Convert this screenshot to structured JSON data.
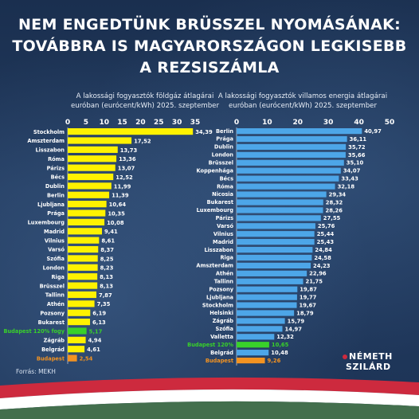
{
  "title_lines": [
    "NEM ENGEDTÜNK BRÜSSZEL NYOMÁSÁNAK:",
    "TOVÁBBRA IS MAGYARORSZÁGON LEGKISEBB",
    "A REZSISZÁMLA"
  ],
  "source": "Forrás: MEKH",
  "logo": {
    "line1": "NÉMETH",
    "line2": "SZILÁRD"
  },
  "colors": {
    "gas_bar": "#fff200",
    "electricity_bar": "#4da6e8",
    "highlight_budapest_120": "#39d12a",
    "highlight_budapest": "#f39321",
    "label_budapest_120": "#39d12a",
    "label_budapest": "#f39321",
    "flag_red": "#cd2a3e",
    "flag_white": "#ffffff",
    "flag_green": "#436f4d"
  },
  "chart_data": [
    {
      "type": "bar",
      "orientation": "horizontal",
      "title_lines": [
        "A lakossági fogyasztók földgáz átlagárai",
        "euróban (eurócent/kWh) 2025. szeptember"
      ],
      "xlim": [
        0,
        35
      ],
      "xticks": [
        "0",
        "5",
        "10",
        "15",
        "20",
        "25",
        "30",
        "35"
      ],
      "bar_color": "#fff200",
      "categories": [
        "Stockholm",
        "Amszterdam",
        "Lisszabon",
        "Róma",
        "Párizs",
        "Bécs",
        "Dublin",
        "Berlin",
        "Ljubljana",
        "Prága",
        "Luxembourg",
        "Madrid",
        "Vilnius",
        "Varsó",
        "Szófia",
        "London",
        "Riga",
        "Brüsszel",
        "Tallinn",
        "Athén",
        "Pozsony",
        "Bukarest",
        "Budapest 120% fogy",
        "Zágráb",
        "Belgrád",
        "Budapest"
      ],
      "values": [
        34.39,
        17.52,
        13.73,
        13.36,
        13.07,
        12.52,
        11.99,
        11.39,
        10.64,
        10.35,
        10.08,
        9.41,
        8.61,
        8.37,
        8.25,
        8.23,
        8.13,
        8.13,
        7.87,
        7.35,
        6.19,
        6.13,
        5.17,
        4.94,
        4.61,
        2.54
      ],
      "value_labels": [
        "34,39",
        "17,52",
        "13,73",
        "13,36",
        "13,07",
        "12,52",
        "11,99",
        "11,39",
        "10,64",
        "10,35",
        "10,08",
        "9,41",
        "8,61",
        "8,37",
        "8,25",
        "8,23",
        "8,13",
        "8,13",
        "7,87",
        "7,35",
        "6,19",
        "6,13",
        "5,17",
        "4,94",
        "4,61",
        "2,54"
      ],
      "highlights": {
        "Budapest 120% fogy": "green",
        "Budapest": "orange"
      }
    },
    {
      "type": "bar",
      "orientation": "horizontal",
      "title_lines": [
        "A lakossági fogyasztók villamos energia átlagárai",
        "euróban (eurócent/kWh) 2025. szeptember"
      ],
      "xlim": [
        0,
        50
      ],
      "xticks": [
        "0",
        "10",
        "20",
        "30",
        "40",
        "50"
      ],
      "bar_color": "#4da6e8",
      "categories": [
        "Berlin",
        "Prága",
        "Dublin",
        "London",
        "Brüsszel",
        "Koppenhága",
        "Bécs",
        "Róma",
        "Nicosia",
        "Bukarest",
        "Luxembourg",
        "Párizs",
        "Varsó",
        "Vilnius",
        "Madrid",
        "Lisszabon",
        "Riga",
        "Amszterdam",
        "Athén",
        "Tallinn",
        "Pozsony",
        "Ljubljana",
        "Stockholm",
        "Helsinki",
        "Zágráb",
        "Szófia",
        "Valletta",
        "Budapest 120%",
        "Belgrád",
        "Budapest"
      ],
      "values": [
        40.97,
        36.11,
        35.72,
        35.66,
        35.1,
        34.07,
        33.43,
        32.18,
        29.34,
        28.32,
        28.26,
        27.55,
        25.76,
        25.44,
        25.43,
        24.84,
        24.58,
        24.23,
        22.96,
        21.75,
        19.87,
        19.77,
        19.67,
        18.79,
        15.79,
        14.97,
        12.32,
        10.65,
        10.48,
        9.26
      ],
      "value_labels": [
        "40,97",
        "36,11",
        "35,72",
        "35,66",
        "35,10",
        "34,07",
        "33,43",
        "32,18",
        "29,34",
        "28,32",
        "28,26",
        "27,55",
        "25,76",
        "25,44",
        "25,43",
        "24,84",
        "24,58",
        "24,23",
        "22,96",
        "21,75",
        "19,87",
        "19,77",
        "19,67",
        "18,79",
        "15,79",
        "14,97",
        "12,32",
        "10,65",
        "10,48",
        "9,26"
      ],
      "highlights": {
        "Budapest 120%": "green",
        "Budapest": "orange"
      }
    }
  ]
}
